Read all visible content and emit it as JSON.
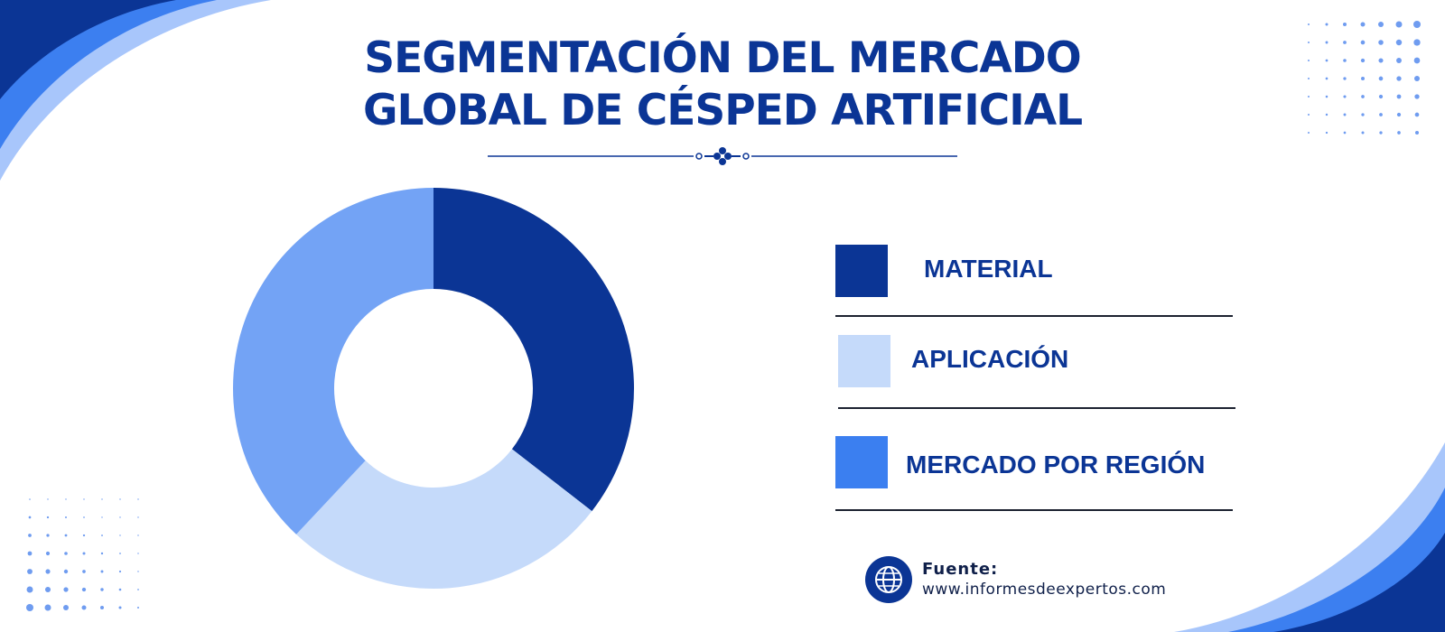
{
  "title_lines": [
    "SEGMENTACIÓN DEL MERCADO",
    "GLOBAL DE CÉSPED ARTIFICIAL"
  ],
  "colors": {
    "primary": "#0b3595",
    "series": [
      "#0b3595",
      "#c5dafa",
      "#73a3f5"
    ],
    "legend_swatches": [
      "#0b3595",
      "#c5dafa",
      "#3b7ff0"
    ]
  },
  "chart_data": {
    "type": "pie",
    "donut": true,
    "title": "SEGMENTACIÓN DEL MERCADO GLOBAL DE CÉSPED ARTIFICIAL",
    "slices": [
      {
        "value": 35.5,
        "color": "#0b3595"
      },
      {
        "value": 26.5,
        "color": "#c5dafa"
      },
      {
        "value": 38.0,
        "color": "#73a3f5"
      }
    ],
    "legend": [
      "MATERIAL",
      "APLICACIÓN",
      "MERCADO POR REGIÓN"
    ],
    "legend_position": "right"
  },
  "source": {
    "label": "Fuente:",
    "url": "www.informesdeexpertos.com",
    "icon": "globe-icon"
  }
}
